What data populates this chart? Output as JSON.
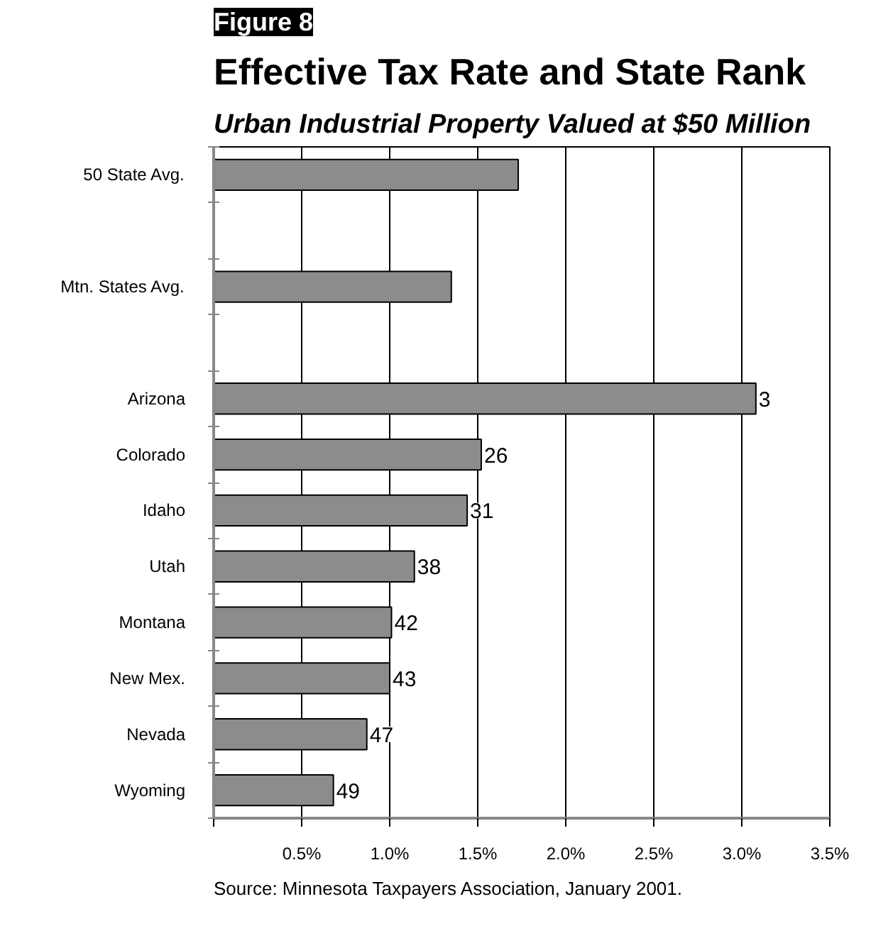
{
  "chart_data": {
    "type": "bar",
    "orientation": "horizontal",
    "title": "Effective Tax Rate and State Rank",
    "subtitle": "Urban Industrial Property Valued at $50 Million",
    "annotations": [
      "Figure 8",
      "Source: Minnesota Taxpayers Association, January 2001.",
      {
        "text": "3",
        "x": 3.08,
        "y": "Arizona"
      },
      {
        "text": "26",
        "x": 1.52,
        "y": "Colorado"
      },
      {
        "text": "31",
        "x": 1.44,
        "y": "Idaho"
      },
      {
        "text": "38",
        "x": 1.14,
        "y": "Utah"
      },
      {
        "text": "42",
        "x": 1.01,
        "y": "Montana"
      },
      {
        "text": "43",
        "x": 1.0,
        "y": "New Mex."
      },
      {
        "text": "47",
        "x": 0.87,
        "y": "Nevada"
      },
      {
        "text": "49",
        "x": 0.68,
        "y": "Wyoming"
      }
    ],
    "categories": [
      "50 State Avg.",
      null,
      "Mtn. States Avg.",
      null,
      "Arizona",
      "Colorado",
      "Idaho",
      "Utah",
      "Montana",
      "New Mex.",
      "Nevada",
      "Wyoming"
    ],
    "values": [
      1.73,
      null,
      1.35,
      null,
      3.08,
      1.52,
      1.44,
      1.14,
      1.01,
      1.0,
      0.87,
      0.68
    ],
    "color": "#8c8c8c",
    "xlim": [
      0,
      3.5
    ],
    "xticks": [
      {
        "value": 0,
        "label": null
      },
      {
        "value": 0.5,
        "label": "0.5%"
      },
      {
        "value": 1.0,
        "label": "1.0%"
      },
      {
        "value": 1.5,
        "label": "1.5%"
      },
      {
        "value": 2.0,
        "label": "2.0%"
      },
      {
        "value": 2.5,
        "label": "2.5%"
      },
      {
        "value": 3.0,
        "label": "3.0%"
      },
      {
        "value": 3.5,
        "label": "3.5%"
      }
    ],
    "grid": "x"
  }
}
